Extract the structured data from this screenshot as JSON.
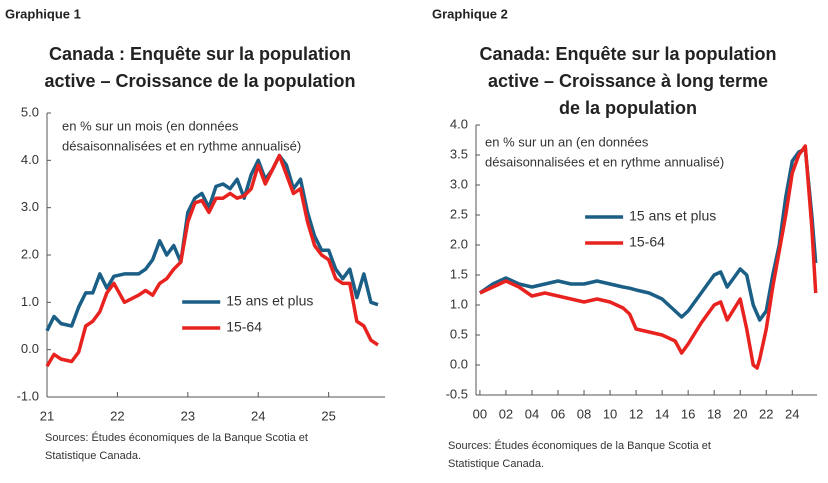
{
  "chart_data": [
    {
      "type": "line",
      "label": "Graphique 1",
      "title": [
        "Canada : Enquête sur la population",
        "active – Croissance de la population"
      ],
      "note": [
        "en % sur un mois (en données",
        "désaisonnalisées et en rythme annualisé)"
      ],
      "source": [
        "Sources: Études économiques de la Banque Scotia et",
        "Statistique Canada."
      ],
      "x": [
        21.0,
        21.1,
        21.2,
        21.35,
        21.45,
        21.55,
        21.65,
        21.75,
        21.85,
        21.95,
        22.1,
        22.3,
        22.4,
        22.5,
        22.6,
        22.7,
        22.8,
        22.9,
        23.0,
        23.1,
        23.2,
        23.3,
        23.4,
        23.5,
        23.6,
        23.7,
        23.8,
        23.9,
        24.0,
        24.1,
        24.2,
        24.3,
        24.4,
        24.5,
        24.6,
        24.7,
        24.8,
        24.9,
        25.0,
        25.1,
        25.2,
        25.3,
        25.4,
        25.5,
        25.6,
        25.7
      ],
      "series": [
        {
          "name": "15 ans et plus",
          "color": "#1b5f86",
          "values": [
            0.4,
            0.7,
            0.55,
            0.5,
            0.9,
            1.2,
            1.2,
            1.6,
            1.3,
            1.55,
            1.6,
            1.6,
            1.7,
            1.9,
            2.3,
            2.0,
            2.2,
            1.85,
            2.9,
            3.2,
            3.3,
            3.0,
            3.45,
            3.5,
            3.4,
            3.6,
            3.2,
            3.7,
            4.0,
            3.6,
            3.8,
            4.1,
            3.9,
            3.4,
            3.6,
            2.9,
            2.4,
            2.1,
            2.1,
            1.7,
            1.5,
            1.7,
            1.1,
            1.6,
            1.0,
            0.95
          ]
        },
        {
          "name": "15-64",
          "color": "#e8231f",
          "values": [
            -0.35,
            -0.1,
            -0.2,
            -0.25,
            -0.05,
            0.5,
            0.6,
            0.8,
            1.2,
            1.4,
            1.0,
            1.15,
            1.25,
            1.15,
            1.4,
            1.5,
            1.7,
            1.85,
            2.7,
            3.1,
            3.15,
            2.9,
            3.2,
            3.2,
            3.3,
            3.2,
            3.25,
            3.4,
            3.9,
            3.5,
            3.8,
            4.1,
            3.7,
            3.3,
            3.4,
            2.7,
            2.2,
            2.0,
            1.9,
            1.5,
            1.4,
            1.4,
            0.6,
            0.5,
            0.2,
            0.1
          ]
        }
      ],
      "xlim": [
        21,
        25.8
      ],
      "xticks": [
        21,
        22,
        23,
        24,
        25
      ],
      "ylim": [
        -1,
        5
      ],
      "yticks": [
        {
          "value": -1,
          "label": "-1.0"
        },
        {
          "value": 0,
          "label": "0.0"
        },
        {
          "value": 1,
          "label": "1.0"
        },
        {
          "value": 2,
          "label": "2.0"
        },
        {
          "value": 3,
          "label": "3.0"
        },
        {
          "value": 4,
          "label": "4.0"
        },
        {
          "value": 5,
          "label": "5.0"
        }
      ],
      "legend": "lower center",
      "grid": false
    },
    {
      "type": "line",
      "label": "Graphique 2",
      "title": [
        "Canada: Enquête sur la population",
        "active –  Croissance à long terme",
        "de la population"
      ],
      "note": [
        "en % sur un an (en données",
        "désaisonnalisées et en rythme annualisé)"
      ],
      "source": [
        "Sources: Études économiques de la Banque Scotia et",
        "Statistique Canada."
      ],
      "x": [
        0,
        1,
        2,
        3,
        4,
        5,
        6,
        7,
        8,
        9,
        10,
        11,
        11.5,
        12,
        13,
        14,
        15,
        15.5,
        16,
        17,
        18,
        18.5,
        19,
        20,
        20.5,
        21,
        21.3,
        21.5,
        22,
        22.5,
        23,
        23.5,
        24,
        24.5,
        25,
        25.5,
        25.8
      ],
      "series": [
        {
          "name": "15 ans et plus",
          "color": "#1b5f86",
          "values": [
            1.2,
            1.35,
            1.45,
            1.35,
            1.3,
            1.35,
            1.4,
            1.35,
            1.35,
            1.4,
            1.35,
            1.3,
            1.28,
            1.25,
            1.2,
            1.1,
            0.9,
            0.8,
            0.9,
            1.2,
            1.5,
            1.55,
            1.3,
            1.6,
            1.5,
            1.0,
            0.85,
            0.75,
            0.9,
            1.5,
            2.0,
            2.8,
            3.4,
            3.55,
            3.6,
            2.5,
            1.7
          ]
        },
        {
          "name": "15-64",
          "color": "#e8231f",
          "values": [
            1.2,
            1.3,
            1.4,
            1.3,
            1.15,
            1.2,
            1.15,
            1.1,
            1.05,
            1.1,
            1.05,
            0.95,
            0.85,
            0.6,
            0.55,
            0.5,
            0.4,
            0.2,
            0.35,
            0.7,
            1.0,
            1.05,
            0.75,
            1.1,
            0.6,
            0.0,
            -0.05,
            0.1,
            0.6,
            1.3,
            1.9,
            2.5,
            3.2,
            3.5,
            3.65,
            2.3,
            1.2
          ]
        }
      ],
      "xlim": [
        -0.3,
        25.9
      ],
      "xticks": [
        {
          "value": 0,
          "label": "00"
        },
        {
          "value": 2,
          "label": "02"
        },
        {
          "value": 4,
          "label": "04"
        },
        {
          "value": 6,
          "label": "06"
        },
        {
          "value": 8,
          "label": "08"
        },
        10,
        12,
        14,
        16,
        18,
        20,
        22,
        24
      ],
      "ylim": [
        -0.5,
        4
      ],
      "yticks": [
        {
          "value": -0.5,
          "label": "-0.5"
        },
        {
          "value": 0,
          "label": "0.0"
        },
        {
          "value": 0.5,
          "label": "0.5"
        },
        {
          "value": 1,
          "label": "1.0"
        },
        {
          "value": 1.5,
          "label": "1.5"
        },
        {
          "value": 2,
          "label": "2.0"
        },
        {
          "value": 2.5,
          "label": "2.5"
        },
        {
          "value": 3,
          "label": "3.0"
        },
        {
          "value": 3.5,
          "label": "3.5"
        },
        {
          "value": 4,
          "label": "4.0"
        }
      ],
      "legend": "upper center",
      "grid": false
    }
  ]
}
